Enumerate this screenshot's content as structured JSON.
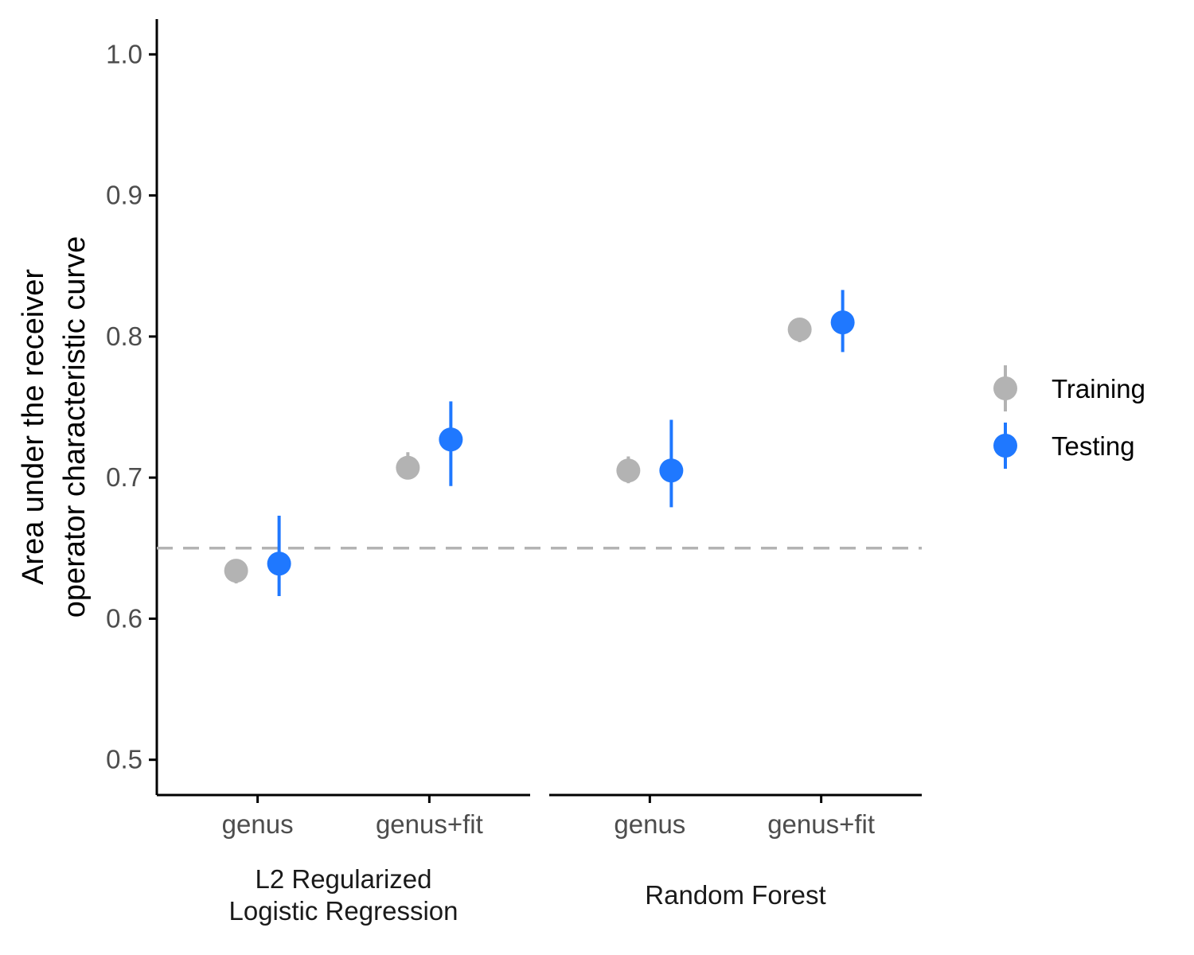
{
  "chart_data": {
    "type": "scatter",
    "ylabel_lines": [
      "Area under the receiver",
      "operator characteristic curve"
    ],
    "ylim": [
      0.475,
      1.025
    ],
    "yticks": [
      0.5,
      0.6,
      0.7,
      0.8,
      0.9,
      1.0
    ],
    "ytick_labels": [
      "0.5",
      "0.6",
      "0.7",
      "0.8",
      "0.9",
      "1.0"
    ],
    "reference_line": {
      "y": 0.65,
      "style": "dashed",
      "color": "#b3b3b3"
    },
    "panels": [
      {
        "label_lines": [
          "L2 Regularized",
          "Logistic Regression"
        ],
        "categories": [
          "genus",
          "genus+fit"
        ]
      },
      {
        "label_lines": [
          "Random Forest"
        ],
        "categories": [
          "genus",
          "genus+fit"
        ]
      }
    ],
    "series": [
      {
        "name": "Training",
        "color": "#b3b3b3",
        "points": [
          {
            "panel": 0,
            "category": "genus",
            "y": 0.634,
            "ymin": 0.625,
            "ymax": 0.642
          },
          {
            "panel": 0,
            "category": "genus+fit",
            "y": 0.707,
            "ymin": 0.7,
            "ymax": 0.718
          },
          {
            "panel": 1,
            "category": "genus",
            "y": 0.705,
            "ymin": 0.696,
            "ymax": 0.715
          },
          {
            "panel": 1,
            "category": "genus+fit",
            "y": 0.805,
            "ymin": 0.796,
            "ymax": 0.812
          }
        ]
      },
      {
        "name": "Testing",
        "color": "#1f78ff",
        "points": [
          {
            "panel": 0,
            "category": "genus",
            "y": 0.639,
            "ymin": 0.616,
            "ymax": 0.673
          },
          {
            "panel": 0,
            "category": "genus+fit",
            "y": 0.727,
            "ymin": 0.694,
            "ymax": 0.754
          },
          {
            "panel": 1,
            "category": "genus",
            "y": 0.705,
            "ymin": 0.679,
            "ymax": 0.741
          },
          {
            "panel": 1,
            "category": "genus+fit",
            "y": 0.81,
            "ymin": 0.789,
            "ymax": 0.833
          }
        ]
      }
    ],
    "legend": {
      "position": "right"
    },
    "grid": false
  }
}
